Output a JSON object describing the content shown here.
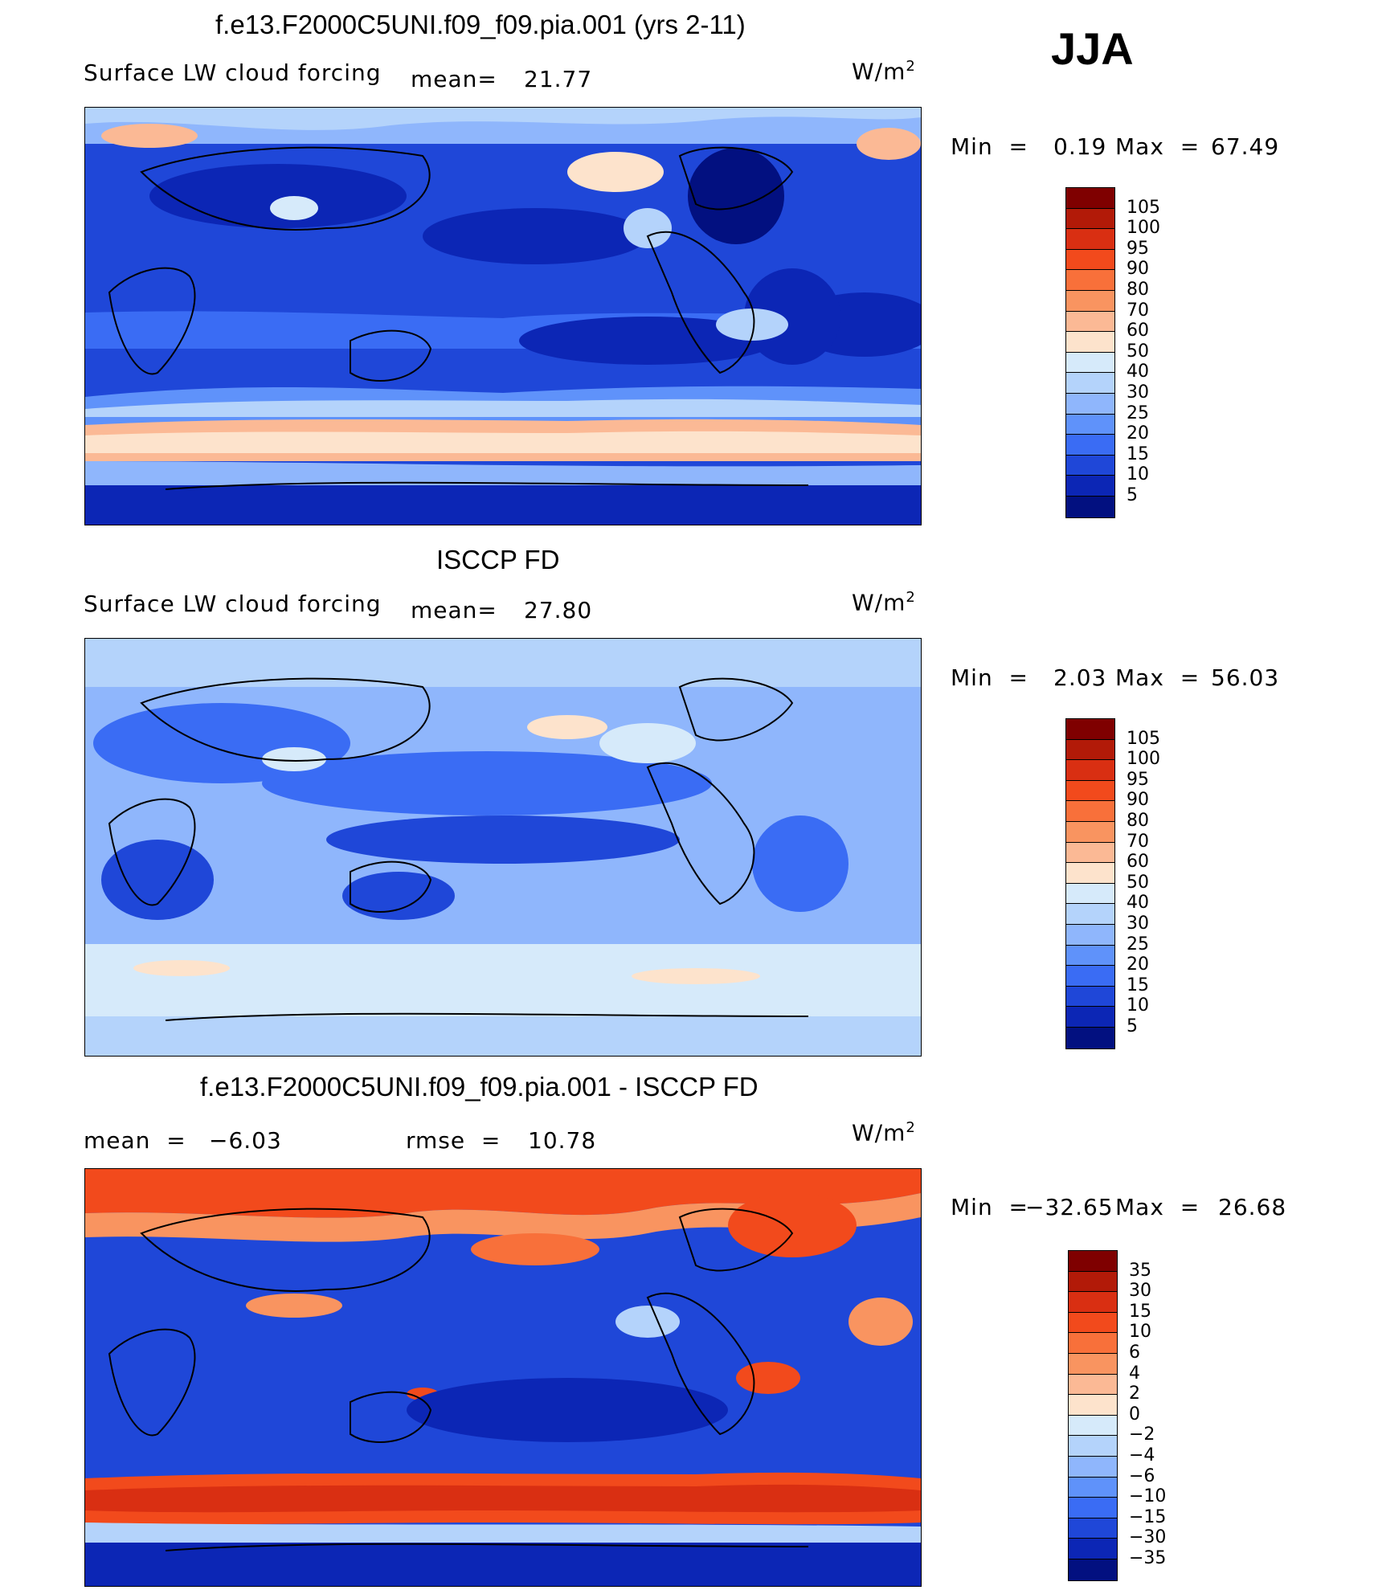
{
  "season": "JJA",
  "units_html": "W/m",
  "units_sup": "2",
  "panels": [
    {
      "title": "f.e13.F2000C5UNI.f09_f09.pia.001 (yrs 2-11)",
      "variable": "Surface LW cloud forcing",
      "stat_label": "mean=",
      "stat_value": "21.77",
      "min_label": "Min  =",
      "min_value": "0.19",
      "max_label": "Max  =",
      "max_value": "67.49"
    },
    {
      "title": "ISCCP FD",
      "variable": "Surface LW cloud forcing",
      "stat_label": "mean=",
      "stat_value": "27.80",
      "min_label": "Min  =",
      "min_value": "2.03",
      "max_label": "Max  =",
      "max_value": "56.03"
    },
    {
      "title": "f.e13.F2000C5UNI.f09_f09.pia.001 - ISCCP FD",
      "mean_label": "mean  =",
      "mean_value": "−6.03",
      "rmse_label": "rmse  =",
      "rmse_value": "10.78",
      "min_label": "Min  =",
      "min_value": "−32.65",
      "max_label": "Max  =",
      "max_value": "26.68"
    }
  ],
  "chart_data": [
    {
      "type": "heatmap",
      "title": "f.e13.F2000C5UNI.f09_f09.pia.001 (yrs 2-11)",
      "subtitle": "Surface LW cloud forcing",
      "units": "W/m2",
      "mean": 21.77,
      "min": 0.19,
      "max": 67.49,
      "colorbar_levels": [
        105,
        100,
        95,
        90,
        80,
        70,
        60,
        50,
        40,
        30,
        25,
        20,
        15,
        10,
        5
      ],
      "colorbar_colors": [
        "#7f0000",
        "#b21a08",
        "#d92f12",
        "#f24a1c",
        "#f8703a",
        "#f99460",
        "#fbb995",
        "#fde3cc",
        "#d6eafa",
        "#b4d3fb",
        "#8fb6fc",
        "#5f92fa",
        "#3a6cf4",
        "#1f47d8",
        "#0c26b5",
        "#021080"
      ]
    },
    {
      "type": "heatmap",
      "title": "ISCCP FD",
      "subtitle": "Surface LW cloud forcing",
      "units": "W/m2",
      "mean": 27.8,
      "min": 2.03,
      "max": 56.03,
      "colorbar_levels": [
        105,
        100,
        95,
        90,
        80,
        70,
        60,
        50,
        40,
        30,
        25,
        20,
        15,
        10,
        5
      ],
      "colorbar_colors": [
        "#7f0000",
        "#b21a08",
        "#d92f12",
        "#f24a1c",
        "#f8703a",
        "#f99460",
        "#fbb995",
        "#fde3cc",
        "#d6eafa",
        "#b4d3fb",
        "#8fb6fc",
        "#5f92fa",
        "#3a6cf4",
        "#1f47d8",
        "#0c26b5",
        "#021080"
      ]
    },
    {
      "type": "heatmap",
      "title": "f.e13.F2000C5UNI.f09_f09.pia.001 - ISCCP FD",
      "units": "W/m2",
      "mean": -6.03,
      "rmse": 10.78,
      "min": -32.65,
      "max": 26.68,
      "colorbar_levels": [
        "35",
        "30",
        "15",
        "10",
        "6",
        "4",
        "2",
        "0",
        "−2",
        "−4",
        "−6",
        "−10",
        "−15",
        "−30",
        "−35"
      ],
      "colorbar_colors": [
        "#7f0000",
        "#b21a08",
        "#d92f12",
        "#f24a1c",
        "#f8703a",
        "#f99460",
        "#fbb995",
        "#fde3cc",
        "#d6eafa",
        "#b4d3fb",
        "#8fb6fc",
        "#5f92fa",
        "#3a6cf4",
        "#1f47d8",
        "#0c26b5",
        "#021080"
      ]
    }
  ]
}
